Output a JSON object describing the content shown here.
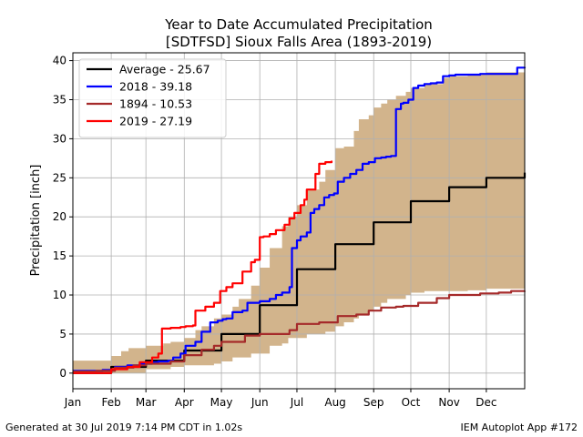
{
  "chart_data": {
    "type": "line",
    "title": "Year to Date Accumulated Precipitation",
    "subtitle": "[SDTFSD] Sioux Falls Area (1893-2019)",
    "ylabel": "Precipitation [inch]",
    "xlabel": "",
    "xlim": [
      1,
      366
    ],
    "ylim": [
      -2,
      41
    ],
    "yticks": [
      0,
      5,
      10,
      15,
      20,
      25,
      30,
      35,
      40
    ],
    "x_tick_labels": [
      "Jan",
      "Feb",
      "Mar",
      "Apr",
      "May",
      "Jun",
      "Jul",
      "Aug",
      "Sep",
      "Oct",
      "Nov",
      "Dec"
    ],
    "x_tick_days": [
      1,
      32,
      60,
      91,
      121,
      152,
      182,
      213,
      244,
      274,
      305,
      335
    ],
    "grid": true,
    "legend_position": "top-left",
    "range_band": {
      "color": "#d2b48c",
      "x": [
        1,
        15,
        32,
        40,
        46,
        60,
        74,
        80,
        91,
        100,
        105,
        115,
        121,
        130,
        135,
        145,
        152,
        160,
        170,
        175,
        182,
        190,
        200,
        205,
        213,
        220,
        228,
        232,
        240,
        244,
        250,
        255,
        262,
        270,
        274,
        285,
        300,
        305,
        320,
        335,
        366
      ],
      "lower": [
        0,
        0,
        0,
        0,
        0,
        0,
        0.5,
        0.5,
        0.8,
        1,
        1,
        1,
        1.2,
        1.5,
        2,
        2,
        2.5,
        2.5,
        3.5,
        3.8,
        4.5,
        4.5,
        5,
        5,
        5.3,
        6,
        6.5,
        7,
        7.5,
        8,
        8.5,
        9,
        9.5,
        9.5,
        10,
        10.3,
        10.5,
        10.5,
        10.5,
        10.6,
        10.8
      ],
      "upper": [
        1.6,
        1.6,
        2.2,
        2.8,
        3.2,
        3.5,
        3.8,
        4,
        4.5,
        5.5,
        6,
        7,
        7.5,
        8.5,
        9.5,
        11.2,
        13.5,
        16,
        18.8,
        20,
        21.5,
        23.5,
        24.5,
        26,
        28.8,
        29,
        31,
        32.5,
        33,
        34,
        34.5,
        35,
        35.5,
        36,
        36.5,
        37,
        37.8,
        38,
        38.2,
        38.5,
        39.2
      ]
    },
    "series": [
      {
        "name": "Average - 25.67",
        "color": "#000000",
        "x": [
          1,
          32,
          60,
          91,
          121,
          152,
          182,
          213,
          244,
          274,
          305,
          335,
          366
        ],
        "values": [
          0,
          0.8,
          1.6,
          2.9,
          5,
          8.7,
          13.3,
          16.5,
          19.3,
          22,
          23.8,
          25,
          25.67
        ]
      },
      {
        "name": "2018 - 39.18",
        "color": "#0000ff",
        "x": [
          1,
          15,
          25,
          35,
          45,
          55,
          65,
          70,
          78,
          82,
          88,
          92,
          100,
          105,
          112,
          118,
          122,
          125,
          130,
          138,
          142,
          148,
          152,
          160,
          165,
          170,
          176,
          178,
          182,
          185,
          190,
          193,
          196,
          200,
          204,
          208,
          212,
          215,
          220,
          225,
          230,
          235,
          240,
          245,
          250,
          254,
          258,
          262,
          266,
          268,
          272,
          276,
          280,
          285,
          290,
          295,
          300,
          305,
          310,
          315,
          320,
          330,
          350,
          360,
          366
        ],
        "values": [
          0.3,
          0.3,
          0.4,
          0.8,
          1,
          1.2,
          1.4,
          1.5,
          1.6,
          2,
          2.5,
          3.5,
          4,
          5.3,
          6.5,
          6.7,
          6.9,
          7,
          7.8,
          8,
          9,
          9,
          9.2,
          9.5,
          10,
          10.3,
          11,
          16,
          17,
          17.5,
          18,
          20.5,
          21,
          21.5,
          22.5,
          22.8,
          23,
          24.5,
          25,
          25.5,
          26,
          26.8,
          27,
          27.5,
          27.6,
          27.7,
          27.8,
          33.8,
          34.5,
          34.6,
          35,
          36.5,
          36.8,
          37,
          37.1,
          37.2,
          38,
          38.1,
          38.2,
          38.2,
          38.2,
          38.3,
          38.3,
          39.1,
          39.18
        ]
      },
      {
        "name": "1894 - 10.53",
        "color": "#a52a2a",
        "x": [
          1,
          20,
          35,
          50,
          60,
          80,
          91,
          105,
          115,
          121,
          140,
          152,
          176,
          182,
          200,
          215,
          230,
          240,
          250,
          262,
          268,
          280,
          295,
          305,
          330,
          345,
          355,
          366
        ],
        "values": [
          0.2,
          0.3,
          0.7,
          1,
          1.2,
          1.5,
          2.3,
          3,
          3.5,
          4,
          4.8,
          5,
          5.5,
          6.3,
          6.5,
          7.3,
          7.5,
          8,
          8.4,
          8.5,
          8.6,
          9,
          9.6,
          10,
          10.2,
          10.3,
          10.5,
          10.53
        ]
      },
      {
        "name": "2019 - 27.19",
        "color": "#ff0000",
        "x": [
          1,
          20,
          32,
          45,
          55,
          65,
          70,
          73,
          80,
          88,
          92,
          98,
          100,
          108,
          115,
          120,
          125,
          130,
          138,
          145,
          148,
          152,
          155,
          160,
          165,
          172,
          176,
          180,
          185,
          188,
          190,
          194,
          197,
          200,
          205,
          210
        ],
        "values": [
          0,
          0,
          0.5,
          0.8,
          1.4,
          2,
          2.5,
          5.7,
          5.8,
          5.9,
          6,
          6.1,
          8,
          8.5,
          9,
          10.5,
          11,
          11.5,
          13,
          14.2,
          14.5,
          17.4,
          17.5,
          17.8,
          18.3,
          19,
          19.8,
          20.5,
          21.5,
          22.2,
          23.5,
          23.5,
          25.5,
          26.8,
          27,
          27.19
        ]
      }
    ]
  },
  "footer": {
    "left": "Generated at 30 Jul 2019 7:14 PM CDT in 1.02s",
    "right": "IEM Autoplot App #172"
  }
}
